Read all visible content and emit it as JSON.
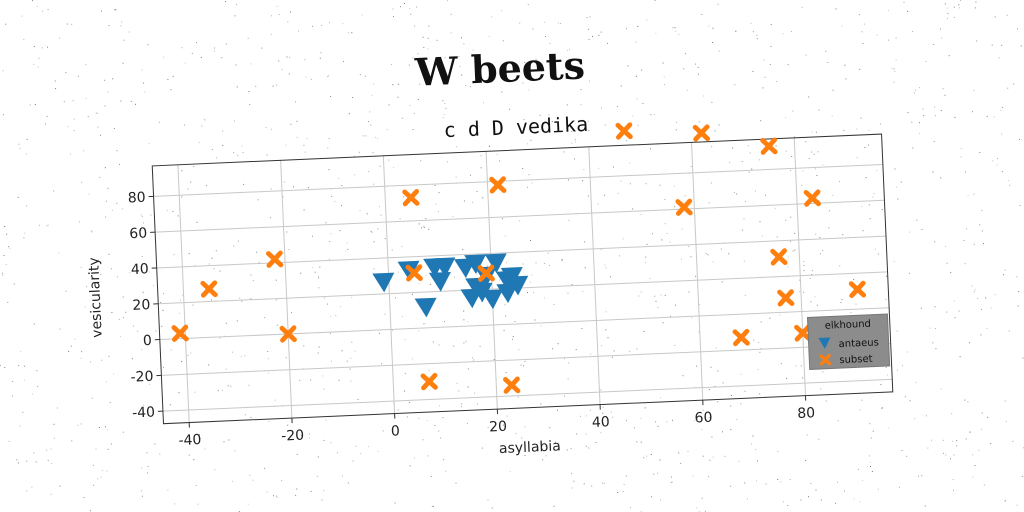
{
  "chart_data": {
    "type": "scatter",
    "title": "W beets",
    "subtitle": "c d D vedika",
    "xlabel": "asyllabia",
    "ylabel": "vesicularity",
    "xlim": [
      -45,
      97
    ],
    "ylim": [
      -47,
      97
    ],
    "xticks": [
      -40,
      -20,
      0,
      20,
      40,
      60,
      80
    ],
    "yticks": [
      -40,
      -20,
      0,
      20,
      40,
      60,
      80
    ],
    "grid": true,
    "legend": {
      "title": "elkhound",
      "placement": "lower-right"
    },
    "series": [
      {
        "name": "antaeus",
        "marker": "triangle-down",
        "color": "#1f77b4",
        "points": [
          [
            -1,
            27
          ],
          [
            4,
            33
          ],
          [
            7,
            12
          ],
          [
            9,
            34
          ],
          [
            10,
            26
          ],
          [
            11,
            34
          ],
          [
            15,
            33
          ],
          [
            16,
            16
          ],
          [
            17,
            22
          ],
          [
            17,
            35
          ],
          [
            18,
            19
          ],
          [
            19,
            28
          ],
          [
            20,
            15
          ],
          [
            21,
            35
          ],
          [
            23,
            25
          ],
          [
            23,
            18
          ],
          [
            24,
            27
          ],
          [
            25,
            22
          ]
        ]
      },
      {
        "name": "subset",
        "marker": "x",
        "color": "#ff7f0e",
        "points": [
          [
            -41,
            3
          ],
          [
            -35,
            27
          ],
          [
            -22,
            42
          ],
          [
            -20,
            0
          ],
          [
            5,
            73
          ],
          [
            5,
            31
          ],
          [
            7,
            -30
          ],
          [
            19,
            29
          ],
          [
            22,
            78
          ],
          [
            23,
            -34
          ],
          [
            47,
            105
          ],
          [
            58,
            61
          ],
          [
            62,
            102
          ],
          [
            68,
            -13
          ],
          [
            75,
            93
          ],
          [
            76,
            31
          ],
          [
            77,
            8
          ],
          [
            80,
            -12
          ],
          [
            83,
            63
          ],
          [
            91,
            11
          ]
        ]
      }
    ]
  }
}
